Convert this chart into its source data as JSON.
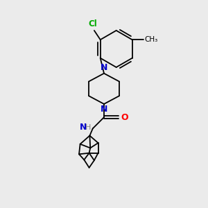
{
  "bg_color": "#ebebeb",
  "bond_color": "#000000",
  "N_color": "#0000cc",
  "O_color": "#ff0000",
  "Cl_color": "#00aa00",
  "H_color": "#888888",
  "line_width": 1.3,
  "figsize": [
    3.0,
    3.0
  ],
  "dpi": 100,
  "xlim": [
    0,
    10
  ],
  "ylim": [
    0,
    10
  ]
}
